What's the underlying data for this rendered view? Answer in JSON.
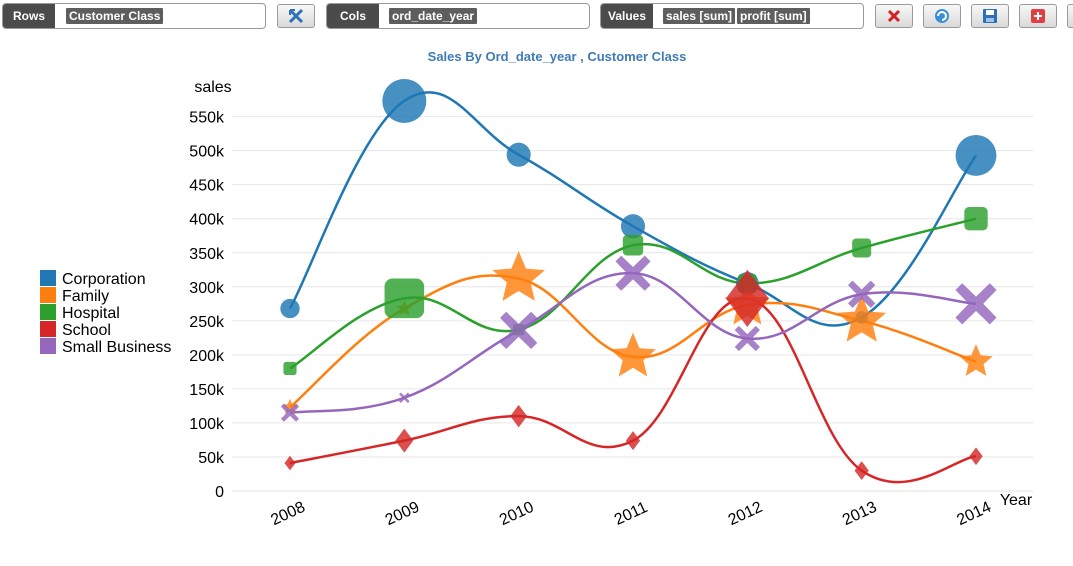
{
  "toolbar": {
    "rows": {
      "label": "Rows",
      "chips": [
        "Customer Class"
      ]
    },
    "cols": {
      "label": "Cols",
      "chips": [
        "ord_date_year"
      ]
    },
    "values": {
      "label": "Values",
      "chips": [
        "sales [sum]",
        "profit [sum]"
      ]
    },
    "icons": [
      "swap-axes-icon",
      "clear-icon",
      "refresh-icon",
      "save-icon",
      "add-icon"
    ]
  },
  "colors": {
    "Corporation": "#1f77b4",
    "Family": "#ff7f0e",
    "Hospital": "#2ca02c",
    "School": "#d62728",
    "Small Business": "#9467bd"
  },
  "chart_data": {
    "type": "scatter",
    "title": "Sales By Ord_date_year , Customer Class",
    "xlabel": "Year",
    "ylabel": "sales",
    "categories": [
      "2008",
      "2009",
      "2010",
      "2011",
      "2012",
      "2013",
      "2014"
    ],
    "ylim": [
      0,
      570000
    ],
    "yticks": [
      0,
      50000,
      100000,
      150000,
      200000,
      250000,
      300000,
      350000,
      400000,
      450000,
      500000,
      550000
    ],
    "ytick_labels": [
      "0",
      "50k",
      "100k",
      "150k",
      "200k",
      "250k",
      "300k",
      "350k",
      "400k",
      "450k",
      "500k",
      "550k"
    ],
    "legend_position": "left",
    "series": [
      {
        "name": "Corporation",
        "marker": "circle",
        "values": [
          268000,
          573000,
          494000,
          389000,
          305000,
          255000,
          493000
        ],
        "profit": [
          6000,
          60000,
          12000,
          12000,
          10000,
          1000,
          50000
        ]
      },
      {
        "name": "Family",
        "marker": "star",
        "values": [
          123000,
          268000,
          312000,
          197000,
          273000,
          250000,
          190000
        ],
        "profit": [
          1000,
          1000,
          50000,
          36000,
          35000,
          42000,
          15000
        ]
      },
      {
        "name": "Hospital",
        "marker": "square",
        "values": [
          180000,
          283000,
          237000,
          361000,
          305000,
          357000,
          400000
        ],
        "profit": [
          2000,
          60000,
          1000,
          10000,
          8000,
          8000,
          15000
        ]
      },
      {
        "name": "School",
        "marker": "diamond",
        "values": [
          41000,
          74000,
          110000,
          74000,
          283000,
          30000,
          51000
        ],
        "profit": [
          500,
          5000,
          4000,
          2000,
          60000,
          2000,
          1500
        ]
      },
      {
        "name": "Small Business",
        "marker": "cross",
        "values": [
          115000,
          137000,
          236000,
          320000,
          224000,
          289000,
          275000
        ],
        "profit": [
          4000,
          200,
          35000,
          30000,
          12000,
          15000,
          45000
        ]
      }
    ]
  }
}
